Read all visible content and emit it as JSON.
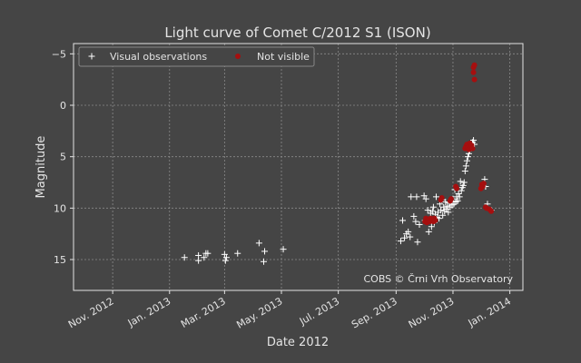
{
  "chart_data": {
    "type": "scatter",
    "title": "Light curve of Comet C/2012 S1 (ISON)",
    "xlabel": "Date 2012",
    "ylabel": "Magnitude",
    "y_inverted": true,
    "xlim": [
      "2012-09-20",
      "2014-01-15"
    ],
    "ylim": [
      18,
      -6
    ],
    "y_ticks": [
      -5,
      0,
      5,
      10,
      15
    ],
    "x_ticks": [
      {
        "date": "2012-11-01",
        "label": "Nov. 2012"
      },
      {
        "date": "2013-01-01",
        "label": "Jan. 2013"
      },
      {
        "date": "2013-03-01",
        "label": "Mar. 2013"
      },
      {
        "date": "2013-05-01",
        "label": "May. 2013"
      },
      {
        "date": "2013-07-01",
        "label": "Jul. 2013"
      },
      {
        "date": "2013-09-01",
        "label": "Sep. 2013"
      },
      {
        "date": "2013-11-01",
        "label": "Nov. 2013"
      },
      {
        "date": "2014-01-01",
        "label": "Jan. 2014"
      }
    ],
    "grid": true,
    "legend_position": "top-left",
    "annotation": "COBS © Črni Vrh Observatory",
    "series": [
      {
        "name": "Visual observations",
        "marker": "+",
        "color": "#ffffff",
        "points": [
          [
            "2013-01-17",
            14.8
          ],
          [
            "2013-02-01",
            15.1
          ],
          [
            "2013-02-01",
            14.6
          ],
          [
            "2013-02-07",
            14.8
          ],
          [
            "2013-02-09",
            14.4
          ],
          [
            "2013-02-11",
            14.4
          ],
          [
            "2013-03-01",
            14.5
          ],
          [
            "2013-03-02",
            15.1
          ],
          [
            "2013-03-03",
            14.8
          ],
          [
            "2013-03-15",
            14.4
          ],
          [
            "2013-04-07",
            13.4
          ],
          [
            "2013-04-12",
            15.2
          ],
          [
            "2013-04-13",
            14.2
          ],
          [
            "2013-05-03",
            14.0
          ],
          [
            "2013-09-06",
            13.2
          ],
          [
            "2013-09-08",
            11.2
          ],
          [
            "2013-09-10",
            12.9
          ],
          [
            "2013-09-12",
            12.5
          ],
          [
            "2013-09-14",
            12.3
          ],
          [
            "2013-09-16",
            12.8
          ],
          [
            "2013-09-17",
            8.9
          ],
          [
            "2013-09-20",
            10.8
          ],
          [
            "2013-09-22",
            11.3
          ],
          [
            "2013-09-23",
            8.9
          ],
          [
            "2013-09-24",
            13.3
          ],
          [
            "2013-09-26",
            11.6
          ],
          [
            "2013-10-01",
            8.8
          ],
          [
            "2013-10-02",
            11.2
          ],
          [
            "2013-10-03",
            9.1
          ],
          [
            "2013-10-05",
            10.2
          ],
          [
            "2013-10-06",
            12.3
          ],
          [
            "2013-10-08",
            10.5
          ],
          [
            "2013-10-09",
            11.8
          ],
          [
            "2013-10-10",
            10.3
          ],
          [
            "2013-10-11",
            9.9
          ],
          [
            "2013-10-12",
            11.4
          ],
          [
            "2013-10-13",
            10.6
          ],
          [
            "2013-10-14",
            8.9
          ],
          [
            "2013-10-15",
            10.9
          ],
          [
            "2013-10-16",
            10.4
          ],
          [
            "2013-10-17",
            11.0
          ],
          [
            "2013-10-18",
            9.6
          ],
          [
            "2013-10-19",
            10.2
          ],
          [
            "2013-10-20",
            9.2
          ],
          [
            "2013-10-21",
            10.7
          ],
          [
            "2013-10-22",
            9.9
          ],
          [
            "2013-10-23",
            10.3
          ],
          [
            "2013-10-24",
            9.4
          ],
          [
            "2013-10-25",
            10.1
          ],
          [
            "2013-10-26",
            9.8
          ],
          [
            "2013-10-27",
            10.4
          ],
          [
            "2013-10-28",
            9.5
          ],
          [
            "2013-10-29",
            9.9
          ],
          [
            "2013-10-30",
            9.3
          ],
          [
            "2013-10-31",
            9.7
          ],
          [
            "2013-11-01",
            9.1
          ],
          [
            "2013-11-02",
            9.6
          ],
          [
            "2013-11-03",
            8.2
          ],
          [
            "2013-11-04",
            9.4
          ],
          [
            "2013-11-05",
            8.9
          ],
          [
            "2013-11-06",
            9.3
          ],
          [
            "2013-11-07",
            8.6
          ],
          [
            "2013-11-08",
            8.9
          ],
          [
            "2013-11-09",
            7.4
          ],
          [
            "2013-11-10",
            8.3
          ],
          [
            "2013-11-11",
            8.0
          ],
          [
            "2013-11-12",
            7.8
          ],
          [
            "2013-11-13",
            7.5
          ],
          [
            "2013-11-14",
            6.4
          ],
          [
            "2013-11-15",
            5.9
          ],
          [
            "2013-11-16",
            5.4
          ],
          [
            "2013-11-17",
            5.0
          ],
          [
            "2013-11-18",
            4.7
          ],
          [
            "2013-11-19",
            4.4
          ],
          [
            "2013-11-20",
            4.1
          ],
          [
            "2013-11-21",
            3.9
          ],
          [
            "2013-11-22",
            3.6
          ],
          [
            "2013-11-23",
            3.4
          ],
          [
            "2013-11-24",
            3.8
          ],
          [
            "2013-12-05",
            7.2
          ],
          [
            "2013-12-06",
            7.9
          ],
          [
            "2013-12-08",
            9.6
          ],
          [
            "2013-12-12",
            10.2
          ]
        ]
      },
      {
        "name": "Not visible",
        "marker": "dot",
        "color": "#a50f0f",
        "points": [
          [
            "2013-10-02",
            11.3
          ],
          [
            "2013-10-03",
            11.0
          ],
          [
            "2013-10-04",
            11.4
          ],
          [
            "2013-10-05",
            11.2
          ],
          [
            "2013-10-06",
            11.1
          ],
          [
            "2013-10-07",
            11.3
          ],
          [
            "2013-10-08",
            11.0
          ],
          [
            "2013-10-09",
            11.2
          ],
          [
            "2013-10-10",
            11.1
          ],
          [
            "2013-10-11",
            11.3
          ],
          [
            "2013-10-12",
            11.0
          ],
          [
            "2013-10-13",
            11.2
          ],
          [
            "2013-10-19",
            9.2
          ],
          [
            "2013-10-20",
            9.0
          ],
          [
            "2013-10-29",
            9.3
          ],
          [
            "2013-10-30",
            9.1
          ],
          [
            "2013-11-04",
            7.9
          ],
          [
            "2013-11-05",
            8.1
          ],
          [
            "2013-11-14",
            4.2
          ],
          [
            "2013-11-15",
            4.0
          ],
          [
            "2013-11-16",
            3.8
          ],
          [
            "2013-11-17",
            4.1
          ],
          [
            "2013-11-18",
            4.3
          ],
          [
            "2013-11-19",
            3.7
          ],
          [
            "2013-11-20",
            4.0
          ],
          [
            "2013-11-21",
            3.9
          ],
          [
            "2013-11-22",
            4.2
          ],
          [
            "2013-11-23",
            -3.7
          ],
          [
            "2013-11-23",
            -3.2
          ],
          [
            "2013-11-24",
            -2.5
          ],
          [
            "2013-11-24",
            -3.9
          ],
          [
            "2013-12-01",
            8.1
          ],
          [
            "2013-12-02",
            7.7
          ],
          [
            "2013-12-03",
            7.9
          ],
          [
            "2013-12-04",
            7.6
          ],
          [
            "2013-12-06",
            9.9
          ],
          [
            "2013-12-07",
            10.0
          ],
          [
            "2013-12-10",
            10.1
          ],
          [
            "2013-12-12",
            10.3
          ]
        ]
      }
    ]
  }
}
